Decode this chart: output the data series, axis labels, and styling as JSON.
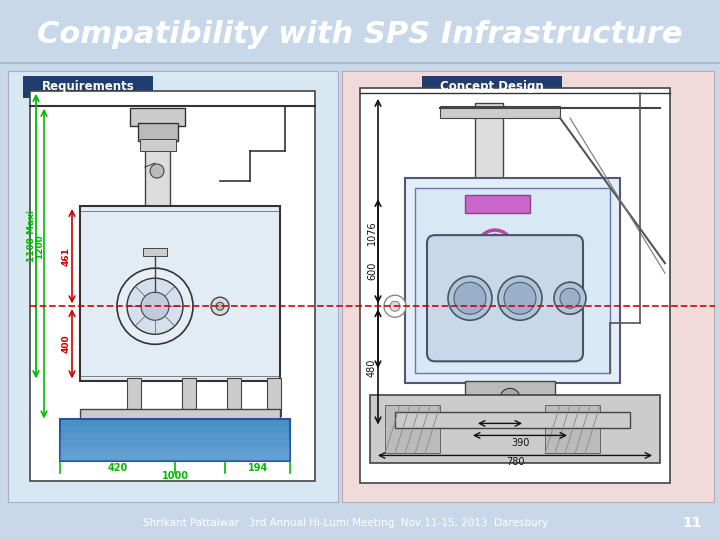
{
  "title": "Compatibility with SPS Infrastructure",
  "title_bg": "#254878",
  "title_color": "#FFFFFF",
  "footer_text": "Shrikant Pattalwar   3rd Annual Hi-Lumi Meeting  Nov 11-15, 2013  Daresbury",
  "footer_page": "11",
  "slide_bg": "#C8D8E8",
  "left_panel_bg": "#D8E8F2",
  "right_panel_bg": "#F0DADA",
  "left_label": "Requirements",
  "right_label": "Concept Design",
  "label_bg": "#1F3D6E",
  "label_color": "#FFFFFF",
  "beam_color": "#CC0000",
  "green": "#00BB00",
  "black_dim": "#111111",
  "title_fontsize": 22,
  "footer_fontsize": 7.5
}
